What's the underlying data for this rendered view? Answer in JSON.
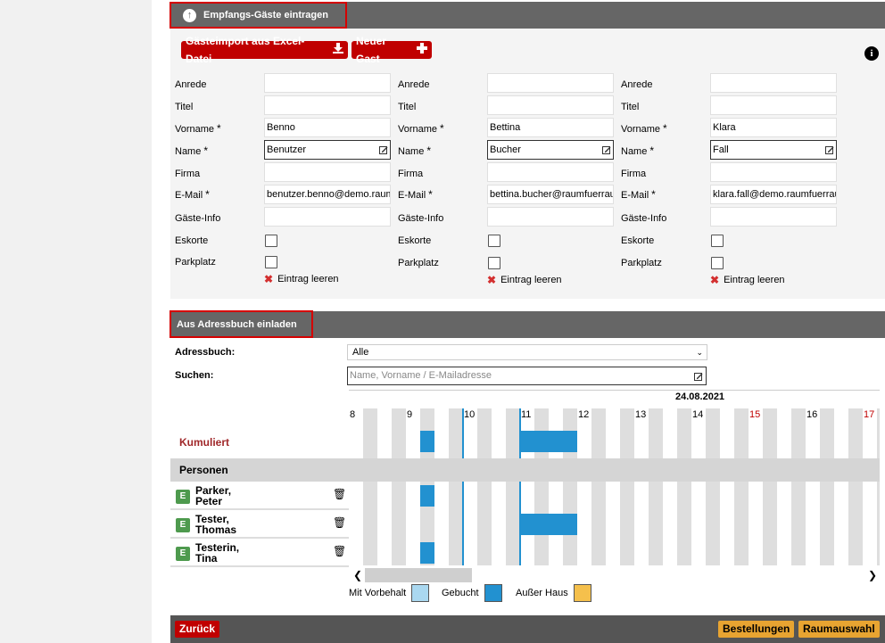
{
  "header": {
    "section1_title": "Empfangs-Gäste eintragen",
    "section2_title": "Aus Adressbuch einladen"
  },
  "toolbar": {
    "import_label": "Gästeimport aus Excel-Datei",
    "new_guest_label": "Neuer Gast"
  },
  "labels": {
    "anrede": "Anrede",
    "titel": "Titel",
    "vorname": "Vorname",
    "name": "Name",
    "firma": "Firma",
    "email": "E-Mail",
    "gaeste_info": "Gäste-Info",
    "eskorte": "Eskorte",
    "parkplatz": "Parkplatz",
    "required_mark": "*",
    "clear_entry": "Eintrag leeren"
  },
  "guests": [
    {
      "vorname": "Benno",
      "name": "Benutzer",
      "email": "benutzer.benno@demo.raumfuerrau"
    },
    {
      "vorname": "Bettina",
      "name": "Bucher",
      "email": "bettina.bucher@raumfuerrau"
    },
    {
      "vorname": "Klara",
      "name": "Fall",
      "email": "klara.fall@demo.raumfuerrau"
    }
  ],
  "addressbook": {
    "label": "Adressbuch:",
    "selected": "Alle",
    "search_label": "Suchen:",
    "search_placeholder": "Name, Vorname / E-Mailadresse"
  },
  "timeline": {
    "date": "24.08.2021",
    "hours": [
      "8",
      "9",
      "10",
      "11",
      "12",
      "13",
      "14",
      "15",
      "16",
      "17"
    ],
    "kumuliert_label": "Kumuliert",
    "personen_label": "Personen",
    "persons": [
      {
        "badge": "E",
        "name_line1": "Parker,",
        "name_line2": "Peter"
      },
      {
        "badge": "E",
        "name_line1": "Tester,",
        "name_line2": "Thomas"
      },
      {
        "badge": "E",
        "name_line1": "Testerin,",
        "name_line2": "Tina"
      }
    ]
  },
  "legend": {
    "vorbehalt": "Mit Vorbehalt",
    "gebucht": "Gebucht",
    "ausser_haus": "Außer Haus"
  },
  "colors": {
    "booked": "#2291d0",
    "vorbehalt": "#aad8f0",
    "ausser_haus": "#f5c04c",
    "brand_red": "#c00000",
    "orange_button": "#e8a431"
  },
  "footer": {
    "back_label": "Zurück",
    "orders_label": "Bestellungen",
    "room_label": "Raumauswahl"
  }
}
